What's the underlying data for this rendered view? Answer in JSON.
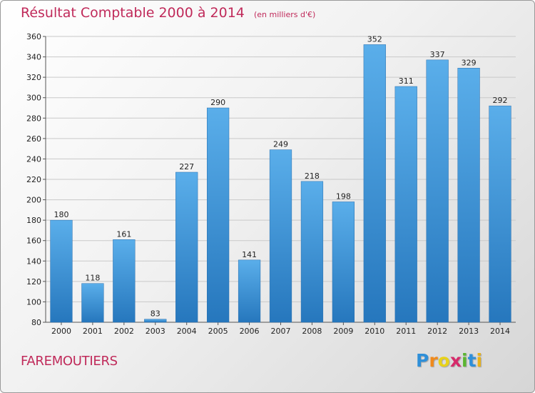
{
  "chart_data": {
    "type": "bar",
    "title": "Résultat Comptable 2000 à 2014",
    "subtitle": "(en milliers d'€)",
    "categories": [
      "2000",
      "2001",
      "2002",
      "2003",
      "2004",
      "2005",
      "2006",
      "2007",
      "2008",
      "2009",
      "2010",
      "2011",
      "2012",
      "2013",
      "2014"
    ],
    "values": [
      180,
      118,
      161,
      83,
      227,
      290,
      141,
      249,
      218,
      198,
      352,
      311,
      337,
      329,
      292
    ],
    "ylim": [
      80,
      360
    ],
    "yticks": [
      80,
      100,
      120,
      140,
      160,
      180,
      200,
      220,
      240,
      260,
      280,
      300,
      320,
      340,
      360
    ],
    "grid": true,
    "bar_color": "#3f95d9",
    "xlabel": "",
    "ylabel": ""
  },
  "commune": "FAREMOUTIERS",
  "logo": {
    "letters": [
      "P",
      "r",
      "o",
      "x",
      "i",
      "t",
      "i"
    ],
    "colors": [
      "#2f8fd8",
      "#f08a1c",
      "#e8d21a",
      "#d62a6a",
      "#5bb531",
      "#2f8fd8",
      "#e8b21a"
    ]
  }
}
